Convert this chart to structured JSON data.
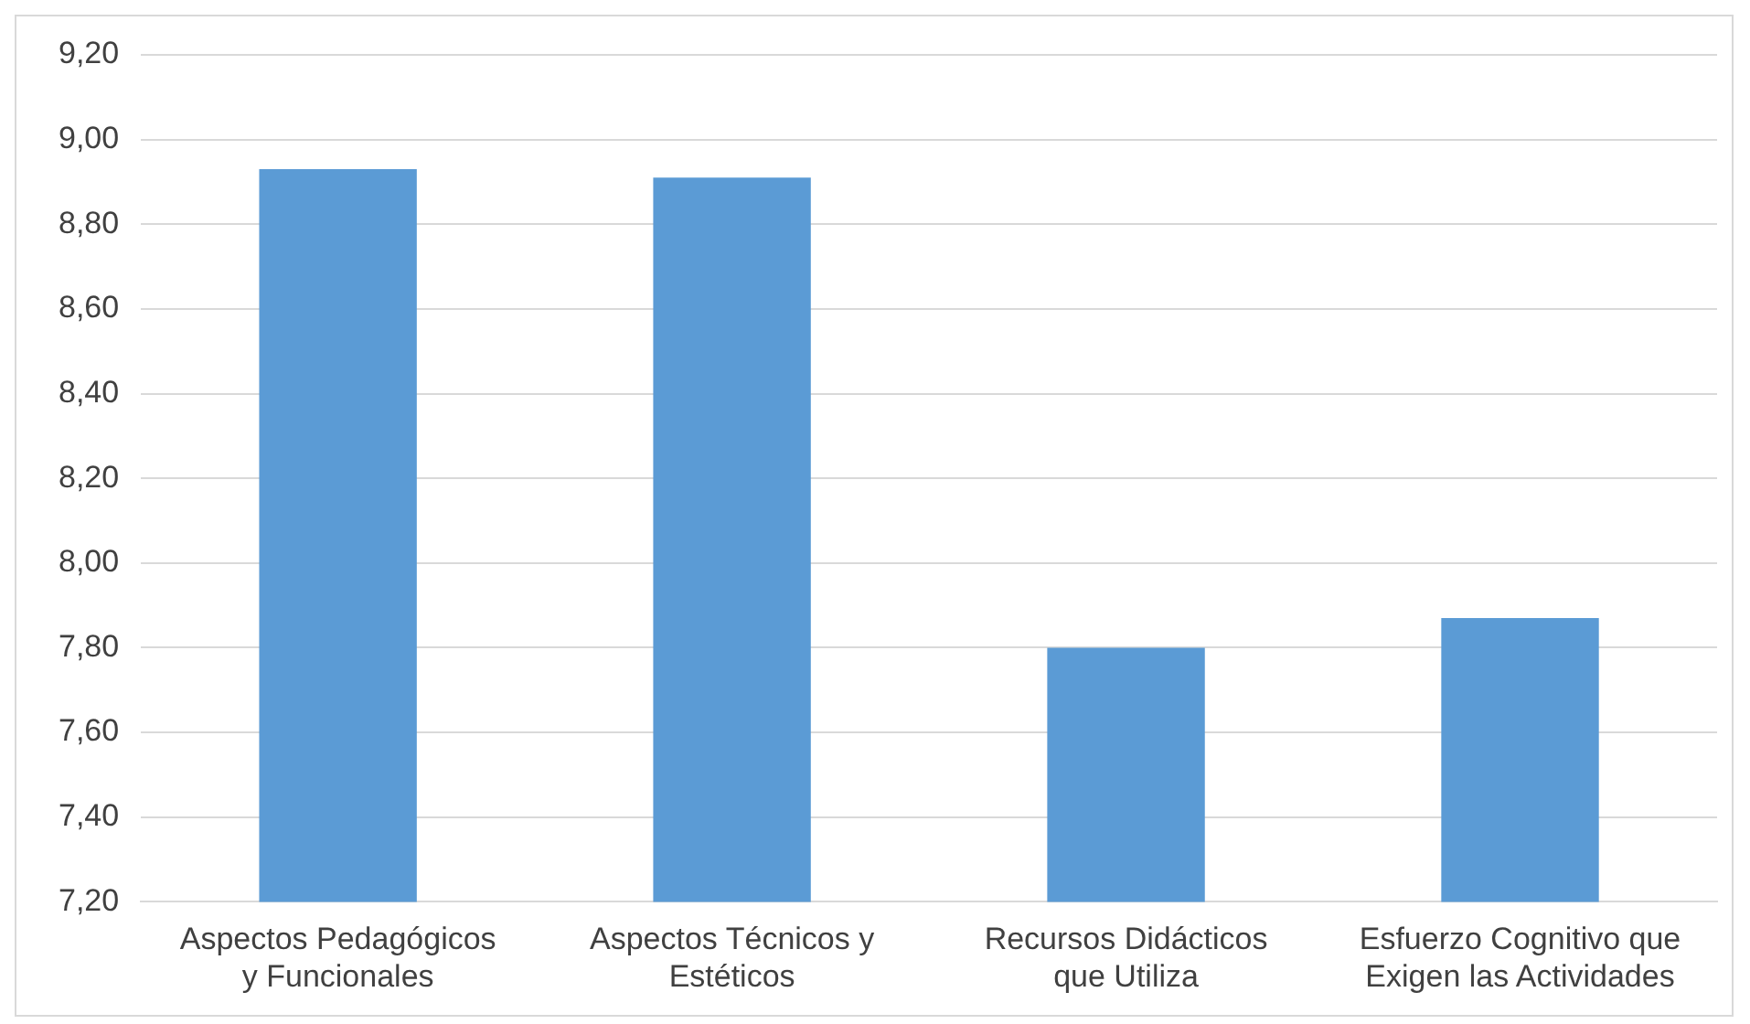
{
  "chart_data": {
    "type": "bar",
    "categories": [
      "Aspectos Pedagógicos y Funcionales",
      "Aspectos Técnicos y Estéticos",
      "Recursos Didácticos que Utiliza",
      "Esfuerzo Cognitivo que Exigen las Actividades"
    ],
    "values": [
      8.93,
      8.91,
      7.8,
      7.87
    ],
    "color": "#5b9bd5",
    "ylim": [
      7.2,
      9.2
    ],
    "yticks": [
      {
        "value": 7.2,
        "label": "7,20"
      },
      {
        "value": 7.4,
        "label": "7,40"
      },
      {
        "value": 7.6,
        "label": "7,60"
      },
      {
        "value": 7.8,
        "label": "7,80"
      },
      {
        "value": 8.0,
        "label": "8,00"
      },
      {
        "value": 8.2,
        "label": "8,20"
      },
      {
        "value": 8.4,
        "label": "8,40"
      },
      {
        "value": 8.6,
        "label": "8,60"
      },
      {
        "value": 8.8,
        "label": "8,80"
      },
      {
        "value": 9.0,
        "label": "9,00"
      },
      {
        "value": 9.2,
        "label": "9,20"
      }
    ],
    "grid": "y",
    "legend": false
  }
}
